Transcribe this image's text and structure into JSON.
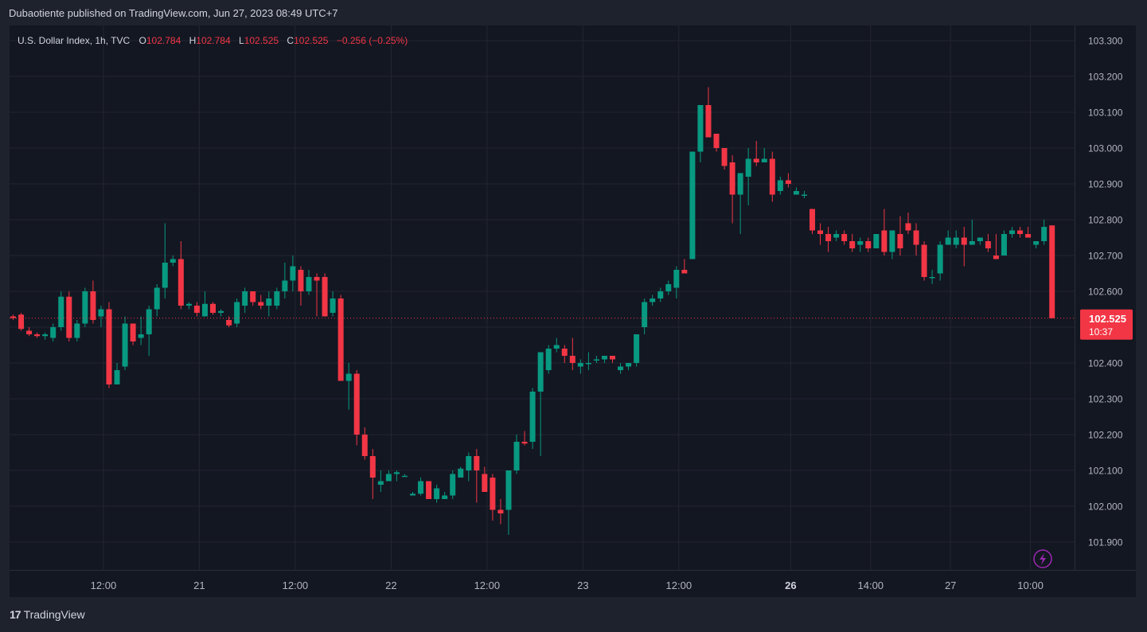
{
  "header": {
    "published_by": "Dubaotiente published on TradingView.com, Jun 27, 2023 08:49 UTC+7"
  },
  "legend": {
    "symbol": "U.S. Dollar Index, 1h, TVC",
    "o_label": "O",
    "o_value": "102.784",
    "h_label": "H",
    "h_value": "102.784",
    "l_label": "L",
    "l_value": "102.525",
    "c_label": "C",
    "c_value": "102.525",
    "change": "−0.256 (−0.25%)"
  },
  "price_badge": {
    "price": "102.525",
    "countdown": "10:37"
  },
  "footer": {
    "brand": "TradingView"
  },
  "colors": {
    "up": "#089981",
    "down": "#f23645",
    "background": "#131722",
    "grid": "#232632",
    "text": "#b2b5be"
  },
  "icons": {
    "lightning": "lightning-icon",
    "logo": "tradingview-logo-icon"
  },
  "chart_data": {
    "type": "candlestick",
    "title": "U.S. Dollar Index, 1h, TVC",
    "ylim": [
      101.8,
      103.32
    ],
    "y_ticks": [
      "103.300",
      "103.200",
      "103.100",
      "103.000",
      "102.900",
      "102.800",
      "102.700",
      "102.600",
      "102.500",
      "102.400",
      "102.300",
      "102.200",
      "102.100",
      "102.000",
      "101.900",
      "101.800"
    ],
    "x_ticks": [
      {
        "label": "12:00",
        "index": 11,
        "bold": false
      },
      {
        "label": "21",
        "index": 23,
        "bold": false
      },
      {
        "label": "12:00",
        "index": 35,
        "bold": false
      },
      {
        "label": "22",
        "index": 47,
        "bold": false
      },
      {
        "label": "12:00",
        "index": 59,
        "bold": false
      },
      {
        "label": "23",
        "index": 71,
        "bold": false
      },
      {
        "label": "12:00",
        "index": 83,
        "bold": false
      },
      {
        "label": "26",
        "index": 97,
        "bold": true
      },
      {
        "label": "14:00",
        "index": 107,
        "bold": false
      },
      {
        "label": "27",
        "index": 117,
        "bold": false
      },
      {
        "label": "10:00",
        "index": 127,
        "bold": false
      }
    ],
    "last_price": 102.525,
    "candles": [
      [
        102.53,
        102.535,
        102.52,
        102.525
      ],
      [
        102.535,
        102.54,
        102.49,
        102.495
      ],
      [
        102.49,
        102.5,
        102.475,
        102.48
      ],
      [
        102.48,
        102.485,
        102.47,
        102.475
      ],
      [
        102.475,
        102.485,
        102.465,
        102.48
      ],
      [
        102.47,
        102.51,
        102.46,
        102.5
      ],
      [
        102.5,
        102.6,
        102.49,
        102.585
      ],
      [
        102.585,
        102.6,
        102.46,
        102.47
      ],
      [
        102.47,
        102.52,
        102.46,
        102.51
      ],
      [
        102.51,
        102.61,
        102.5,
        102.6
      ],
      [
        102.6,
        102.63,
        102.51,
        102.52
      ],
      [
        102.53,
        102.56,
        102.5,
        102.55
      ],
      [
        102.55,
        102.57,
        102.33,
        102.34
      ],
      [
        102.34,
        102.4,
        102.34,
        102.38
      ],
      [
        102.39,
        102.53,
        102.38,
        102.51
      ],
      [
        102.51,
        102.51,
        102.45,
        102.46
      ],
      [
        102.47,
        102.53,
        102.45,
        102.48
      ],
      [
        102.48,
        102.56,
        102.42,
        102.55
      ],
      [
        102.55,
        102.62,
        102.53,
        102.61
      ],
      [
        102.61,
        102.79,
        102.58,
        102.68
      ],
      [
        102.68,
        102.7,
        102.67,
        102.69
      ],
      [
        102.69,
        102.74,
        102.55,
        102.56
      ],
      [
        102.56,
        102.57,
        102.55,
        102.565
      ],
      [
        102.56,
        102.57,
        102.53,
        102.54
      ],
      [
        102.53,
        102.6,
        102.53,
        102.565
      ],
      [
        102.565,
        102.57,
        102.535,
        102.54
      ],
      [
        102.54,
        102.55,
        102.53,
        102.545
      ],
      [
        102.52,
        102.53,
        102.5,
        102.505
      ],
      [
        102.51,
        102.58,
        102.5,
        102.57
      ],
      [
        102.56,
        102.61,
        102.54,
        102.6
      ],
      [
        102.6,
        102.6,
        102.56,
        102.57
      ],
      [
        102.57,
        102.59,
        102.55,
        102.56
      ],
      [
        102.56,
        102.6,
        102.53,
        102.58
      ],
      [
        102.56,
        102.61,
        102.55,
        102.6
      ],
      [
        102.6,
        102.68,
        102.58,
        102.63
      ],
      [
        102.63,
        102.7,
        102.6,
        102.67
      ],
      [
        102.66,
        102.67,
        102.56,
        102.6
      ],
      [
        102.6,
        102.66,
        102.59,
        102.64
      ],
      [
        102.64,
        102.65,
        102.53,
        102.63
      ],
      [
        102.64,
        102.65,
        102.53,
        102.53
      ],
      [
        102.54,
        102.6,
        102.53,
        102.58
      ],
      [
        102.58,
        102.59,
        102.35,
        102.35
      ],
      [
        102.35,
        102.4,
        102.27,
        102.37
      ],
      [
        102.37,
        102.38,
        102.17,
        102.2
      ],
      [
        102.2,
        102.22,
        102.13,
        102.14
      ],
      [
        102.14,
        102.16,
        102.02,
        102.08
      ],
      [
        102.06,
        102.1,
        102.04,
        102.07
      ],
      [
        102.07,
        102.1,
        102.07,
        102.09
      ],
      [
        102.09,
        102.1,
        102.07,
        102.095
      ],
      [
        102.085,
        102.09,
        102.085,
        102.085
      ],
      [
        102.03,
        102.04,
        102.03,
        102.035
      ],
      [
        102.035,
        102.08,
        102.03,
        102.07
      ],
      [
        102.07,
        102.07,
        102.02,
        102.02
      ],
      [
        102.02,
        102.06,
        102.01,
        102.05
      ],
      [
        102.02,
        102.04,
        102.02,
        102.03
      ],
      [
        102.03,
        102.1,
        102.02,
        102.09
      ],
      [
        102.08,
        102.11,
        102.08,
        102.105
      ],
      [
        102.1,
        102.15,
        102.07,
        102.14
      ],
      [
        102.14,
        102.16,
        102.01,
        102.1
      ],
      [
        102.09,
        102.11,
        102.05,
        102.04
      ],
      [
        102.08,
        102.09,
        101.96,
        101.99
      ],
      [
        101.99,
        102.02,
        101.95,
        101.98
      ],
      [
        101.99,
        102.1,
        101.92,
        102.1
      ],
      [
        102.1,
        102.2,
        102.09,
        102.18
      ],
      [
        102.18,
        102.21,
        102.17,
        102.175
      ],
      [
        102.18,
        102.33,
        102.16,
        102.32
      ],
      [
        102.32,
        102.42,
        102.14,
        102.43
      ],
      [
        102.38,
        102.45,
        102.37,
        102.44
      ],
      [
        102.44,
        102.47,
        102.43,
        102.45
      ],
      [
        102.44,
        102.45,
        102.4,
        102.42
      ],
      [
        102.42,
        102.47,
        102.38,
        102.4
      ],
      [
        102.39,
        102.41,
        102.37,
        102.4
      ],
      [
        102.4,
        102.43,
        102.38,
        102.4
      ],
      [
        102.41,
        102.42,
        102.4,
        102.41
      ],
      [
        102.41,
        102.42,
        102.4,
        102.42
      ],
      [
        102.42,
        102.42,
        102.4,
        102.41
      ],
      [
        102.38,
        102.4,
        102.37,
        102.39
      ],
      [
        102.39,
        102.4,
        102.38,
        102.4
      ],
      [
        102.4,
        102.48,
        102.39,
        102.48
      ],
      [
        102.5,
        102.58,
        102.48,
        102.57
      ],
      [
        102.57,
        102.59,
        102.56,
        102.58
      ],
      [
        102.58,
        102.61,
        102.57,
        102.6
      ],
      [
        102.6,
        102.63,
        102.59,
        102.62
      ],
      [
        102.61,
        102.67,
        102.58,
        102.66
      ],
      [
        102.66,
        102.69,
        102.65,
        102.65
      ],
      [
        102.69,
        102.99,
        102.69,
        102.99
      ],
      [
        102.99,
        103.12,
        102.96,
        103.12
      ],
      [
        103.12,
        103.17,
        103.03,
        103.03
      ],
      [
        103.04,
        103.04,
        102.99,
        103.0
      ],
      [
        103.0,
        103.0,
        102.94,
        102.95
      ],
      [
        102.96,
        102.98,
        102.79,
        102.87
      ],
      [
        102.87,
        102.93,
        102.76,
        102.93
      ],
      [
        102.92,
        103.0,
        102.84,
        102.97
      ],
      [
        102.97,
        103.02,
        102.95,
        102.96
      ],
      [
        102.96,
        103.0,
        102.96,
        102.97
      ],
      [
        102.97,
        102.99,
        102.85,
        102.87
      ],
      [
        102.88,
        102.92,
        102.87,
        102.91
      ],
      [
        102.91,
        102.93,
        102.89,
        102.9
      ],
      [
        102.87,
        102.89,
        102.87,
        102.88
      ],
      [
        102.87,
        102.88,
        102.86,
        102.87
      ],
      [
        102.83,
        102.83,
        102.76,
        102.77
      ],
      [
        102.77,
        102.79,
        102.73,
        102.76
      ],
      [
        102.76,
        102.78,
        102.71,
        102.74
      ],
      [
        102.75,
        102.77,
        102.74,
        102.76
      ],
      [
        102.76,
        102.77,
        102.73,
        102.74
      ],
      [
        102.74,
        102.76,
        102.71,
        102.72
      ],
      [
        102.73,
        102.75,
        102.71,
        102.74
      ],
      [
        102.74,
        102.75,
        102.71,
        102.72
      ],
      [
        102.72,
        102.76,
        102.72,
        102.76
      ],
      [
        102.77,
        102.83,
        102.7,
        102.71
      ],
      [
        102.71,
        102.77,
        102.69,
        102.77
      ],
      [
        102.76,
        102.81,
        102.7,
        102.72
      ],
      [
        102.79,
        102.82,
        102.76,
        102.77
      ],
      [
        102.77,
        102.79,
        102.7,
        102.73
      ],
      [
        102.73,
        102.74,
        102.63,
        102.64
      ],
      [
        102.64,
        102.66,
        102.62,
        102.64
      ],
      [
        102.65,
        102.74,
        102.63,
        102.73
      ],
      [
        102.73,
        102.77,
        102.73,
        102.75
      ],
      [
        102.73,
        102.77,
        102.72,
        102.75
      ],
      [
        102.75,
        102.78,
        102.67,
        102.73
      ],
      [
        102.73,
        102.8,
        102.73,
        102.74
      ],
      [
        102.74,
        102.75,
        102.73,
        102.75
      ],
      [
        102.74,
        102.76,
        102.71,
        102.72
      ],
      [
        102.7,
        102.76,
        102.69,
        102.69
      ],
      [
        102.7,
        102.77,
        102.7,
        102.76
      ],
      [
        102.76,
        102.78,
        102.75,
        102.77
      ],
      [
        102.77,
        102.78,
        102.75,
        102.76
      ],
      [
        102.76,
        102.78,
        102.75,
        102.75
      ],
      [
        102.73,
        102.74,
        102.72,
        102.74
      ],
      [
        102.74,
        102.8,
        102.73,
        102.78
      ],
      [
        102.784,
        102.784,
        102.525,
        102.525
      ]
    ]
  }
}
